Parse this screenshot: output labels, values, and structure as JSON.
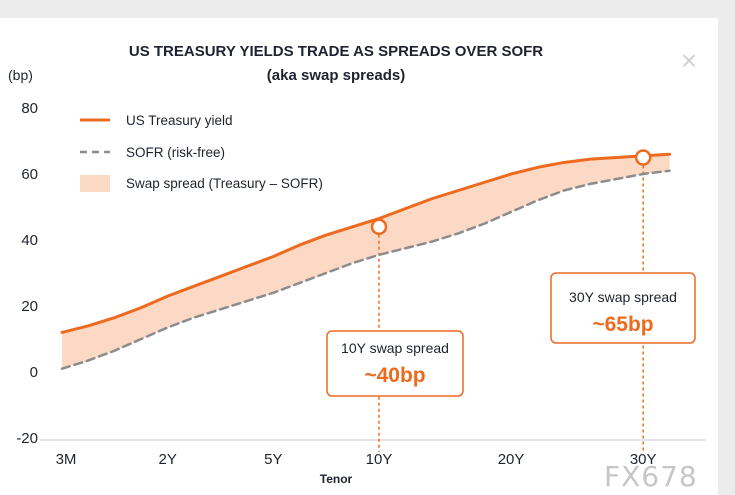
{
  "window": {
    "close_glyph": "×",
    "watermark": "FX678"
  },
  "chart_data": {
    "type": "line",
    "title": "US TREASURY YIELDS TRADE AS SPREADS OVER SOFR",
    "subtitle": "(aka swap spreads)",
    "ylabel": "(bp)",
    "xlabel": "Tenor",
    "ylim": [
      -20,
      80
    ],
    "yticks": [
      -20,
      0,
      20,
      40,
      60,
      80
    ],
    "xlim": [
      0,
      12
    ],
    "categories": [
      {
        "label": "3M",
        "x": 0
      },
      {
        "label": "2Y",
        "x": 2
      },
      {
        "label": "5Y",
        "x": 4
      },
      {
        "label": "10Y",
        "x": 6
      },
      {
        "label": "20Y",
        "x": 8.5
      },
      {
        "label": "30Y",
        "x": 11
      }
    ],
    "grid": false,
    "legend_position": "top-left",
    "series": [
      {
        "name": "US Treasury yield",
        "style": "solid",
        "color": "#ee6a1f",
        "x": [
          0,
          0.5,
          1,
          1.5,
          2,
          2.5,
          3,
          3.5,
          4,
          4.5,
          5,
          5.5,
          6,
          6.5,
          7,
          7.5,
          8,
          8.5,
          9,
          9.5,
          10,
          10.5,
          11,
          11.5
        ],
        "y": [
          12,
          14,
          16.5,
          19.5,
          23,
          26,
          29,
          32,
          35,
          38.5,
          41.5,
          44,
          46.5,
          49.5,
          52.5,
          55,
          57.5,
          60,
          62,
          63.5,
          64.5,
          65,
          65.5,
          66
        ]
      },
      {
        "name": "SOFR (risk-free)",
        "style": "dashed",
        "color": "#8c8c8c",
        "x": [
          0,
          0.5,
          1,
          1.5,
          2,
          2.5,
          3,
          3.5,
          4,
          4.5,
          5,
          5.5,
          6,
          6.5,
          7,
          7.5,
          8,
          8.5,
          9,
          9.5,
          10,
          10.5,
          11,
          11.5
        ],
        "y": [
          1,
          3.5,
          6.5,
          10,
          13.5,
          16.5,
          19,
          21.5,
          24,
          27,
          30,
          33,
          35.5,
          37.5,
          39.5,
          42,
          45,
          48.5,
          52,
          55,
          57,
          58.5,
          60,
          61
        ]
      }
    ],
    "band": {
      "name": "Swap spread (Treasury – SOFR)",
      "color": "#fbd9c4",
      "between": [
        "US Treasury yield",
        "SOFR (risk-free)"
      ]
    },
    "annotations": [
      {
        "x": 6,
        "y": 44,
        "label": "10Y swap spread",
        "value": "~40bp"
      },
      {
        "x": 11,
        "y": 65,
        "label": "30Y swap spread",
        "value": "~65bp"
      }
    ]
  }
}
